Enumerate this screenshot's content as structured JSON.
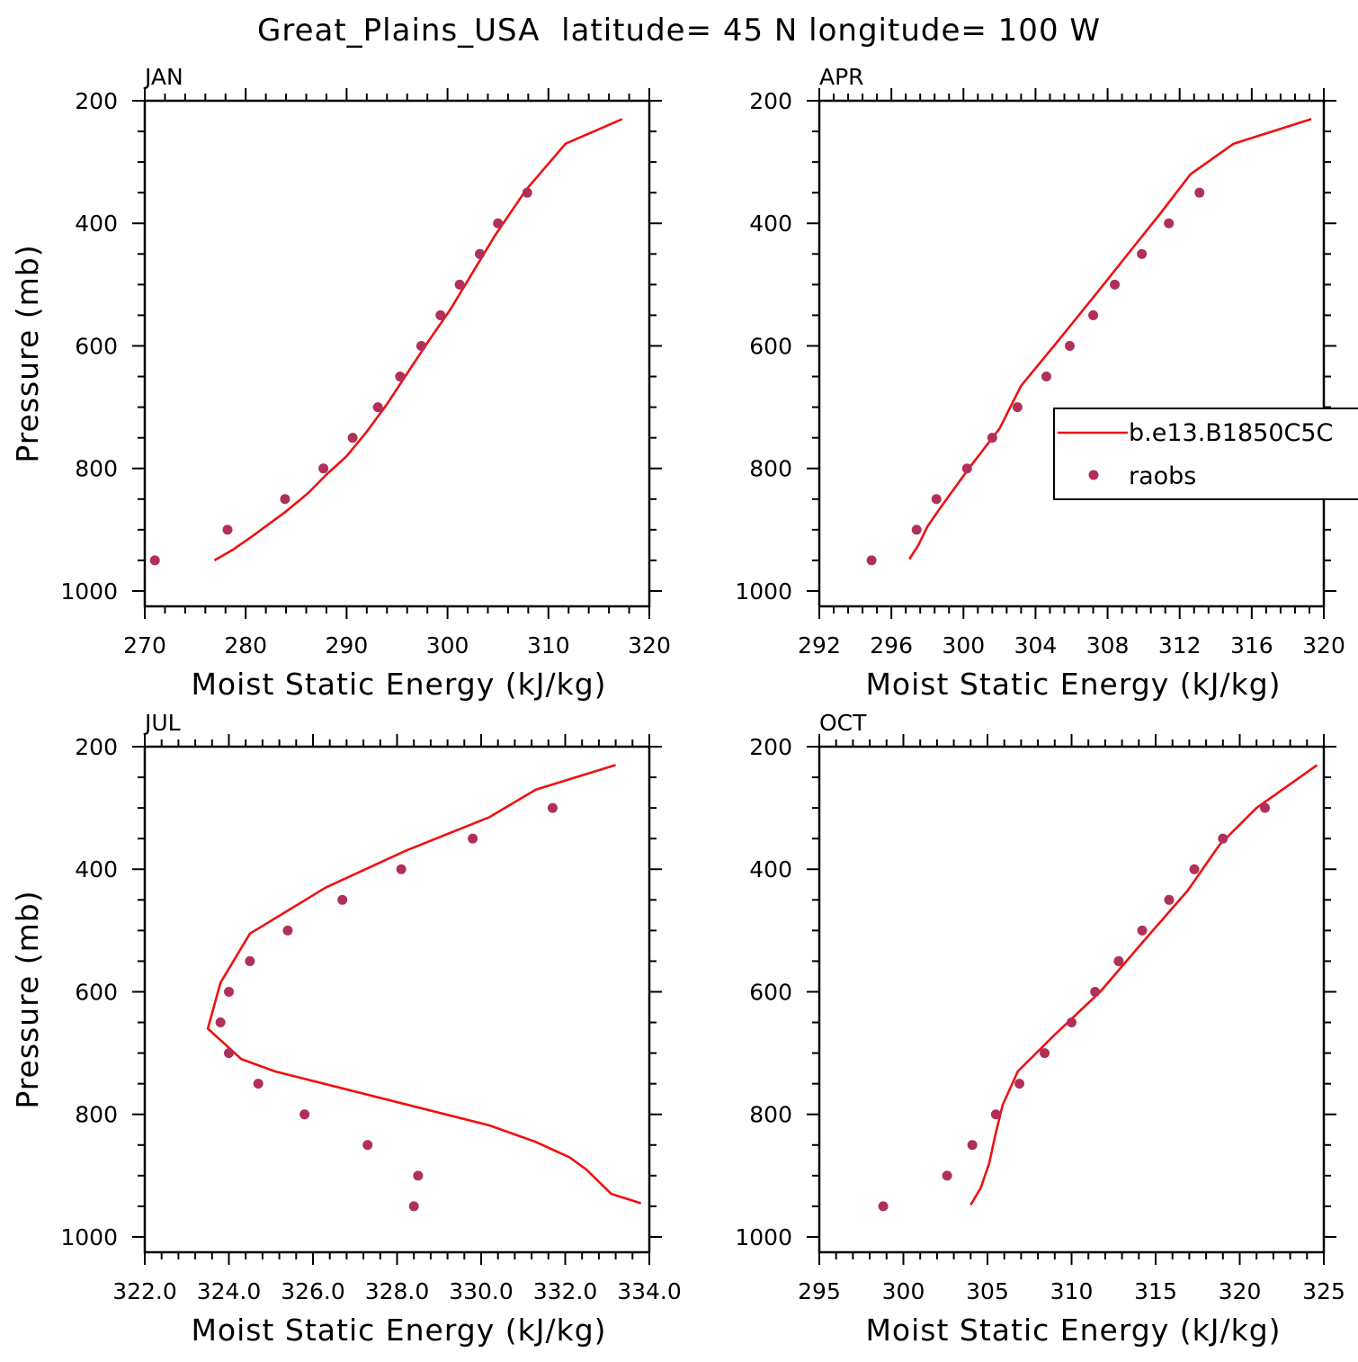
{
  "title": "Great_Plains_USA  latitude= 45 N longitude= 100 W",
  "colors": {
    "model": "#ee1111",
    "raobs": "#b0305a",
    "axis": "#000000"
  },
  "legend": {
    "model_label": "b.e13.B1850C5C",
    "obs_label": "raobs"
  },
  "chart_data": [
    {
      "type": "line+scatter",
      "panel": "JAN",
      "xlabel": "Moist Static Energy (kJ/kg)",
      "ylabel": "Pressure (mb)",
      "xlim": [
        270,
        320
      ],
      "ylim": [
        1025,
        200
      ],
      "xticks": [
        270,
        280,
        290,
        300,
        310,
        320
      ],
      "xtick_labels": [
        "270",
        "280",
        "290",
        "300",
        "310",
        "320"
      ],
      "yticks": [
        200,
        400,
        600,
        800,
        1000
      ],
      "ytick_labels": [
        "200",
        "400",
        "600",
        "800",
        "1000"
      ],
      "model": {
        "name": "b.e13.B1850C5C",
        "x": [
          276.9,
          278.8,
          280.7,
          284.0,
          286.2,
          288.0,
          290.0,
          292.0,
          294.0,
          296.0,
          298.0,
          300.3,
          302.5,
          304.7,
          307.8,
          311.7,
          317.3
        ],
        "p": [
          950,
          932,
          910,
          870,
          840,
          810,
          780,
          740,
          695,
          645,
          595,
          540,
          480,
          420,
          345,
          270,
          230
        ]
      },
      "raobs": {
        "name": "raobs",
        "x": [
          271.0,
          278.2,
          283.9,
          287.7,
          290.6,
          293.1,
          295.3,
          297.4,
          299.3,
          301.2,
          303.2,
          305.0,
          307.9
        ],
        "p": [
          950,
          900,
          850,
          800,
          750,
          700,
          650,
          600,
          550,
          500,
          450,
          400,
          350
        ]
      }
    },
    {
      "type": "line+scatter",
      "panel": "APR",
      "xlabel": "Moist Static Energy (kJ/kg)",
      "ylabel": "Pressure (mb)",
      "xlim": [
        292,
        320
      ],
      "ylim": [
        1025,
        200
      ],
      "xticks": [
        292,
        296,
        300,
        304,
        308,
        312,
        316,
        320
      ],
      "xtick_labels": [
        "292",
        "296",
        "300",
        "304",
        "308",
        "312",
        "316",
        "320"
      ],
      "yticks": [
        200,
        400,
        600,
        800,
        1000
      ],
      "ytick_labels": [
        "200",
        "400",
        "600",
        "800",
        "1000"
      ],
      "model": {
        "name": "b.e13.B1850C5C",
        "x": [
          297.0,
          297.5,
          298.0,
          298.7,
          300.3,
          302.0,
          303.2,
          305.3,
          307.5,
          309.4,
          310.9,
          312.6,
          315.0,
          319.3
        ],
        "p": [
          948,
          925,
          895,
          865,
          800,
          735,
          665,
          590,
          510,
          440,
          385,
          320,
          270,
          230
        ]
      },
      "raobs": {
        "name": "raobs",
        "x": [
          294.9,
          297.4,
          298.5,
          300.2,
          301.6,
          303.0,
          304.6,
          305.9,
          307.2,
          308.4,
          309.9,
          311.4,
          313.1
        ],
        "p": [
          950,
          900,
          850,
          800,
          750,
          700,
          650,
          600,
          550,
          500,
          450,
          400,
          350
        ]
      }
    },
    {
      "type": "line+scatter",
      "panel": "JUL",
      "xlabel": "Moist Static Energy (kJ/kg)",
      "ylabel": "Pressure (mb)",
      "xlim": [
        322.0,
        334.0
      ],
      "ylim": [
        1025,
        200
      ],
      "xticks": [
        322,
        324,
        326,
        328,
        330,
        332,
        334
      ],
      "xtick_labels": [
        "322.0",
        "324.0",
        "326.0",
        "328.0",
        "330.0",
        "332.0",
        "334.0"
      ],
      "yticks": [
        200,
        400,
        600,
        800,
        1000
      ],
      "ytick_labels": [
        "200",
        "400",
        "600",
        "800",
        "1000"
      ],
      "model": {
        "name": "b.e13.B1850C5C",
        "x": [
          333.8,
          333.1,
          332.8,
          332.5,
          332.1,
          331.3,
          330.2,
          325.1,
          324.3,
          323.5,
          323.8,
          324.5,
          326.3,
          328.2,
          330.2,
          331.3,
          333.2
        ],
        "p": [
          945,
          930,
          910,
          890,
          870,
          845,
          818,
          730,
          710,
          660,
          585,
          505,
          430,
          370,
          315,
          270,
          230
        ]
      },
      "raobs": {
        "name": "raobs",
        "x": [
          328.4,
          328.5,
          327.3,
          325.8,
          324.7,
          324.0,
          323.8,
          324.0,
          324.5,
          325.4,
          326.7,
          328.1,
          329.8,
          331.7
        ],
        "p": [
          950,
          900,
          850,
          800,
          750,
          700,
          650,
          600,
          550,
          500,
          450,
          400,
          350,
          300
        ]
      }
    },
    {
      "type": "line+scatter",
      "panel": "OCT",
      "xlabel": "Moist Static Energy (kJ/kg)",
      "ylabel": "Pressure (mb)",
      "xlim": [
        295,
        325
      ],
      "ylim": [
        1025,
        200
      ],
      "xticks": [
        295,
        300,
        305,
        310,
        315,
        320,
        325
      ],
      "xtick_labels": [
        "295",
        "300",
        "305",
        "310",
        "315",
        "320",
        "325"
      ],
      "yticks": [
        200,
        400,
        600,
        800,
        1000
      ],
      "ytick_labels": [
        "200",
        "400",
        "600",
        "800",
        "1000"
      ],
      "model": {
        "name": "b.e13.B1850C5C",
        "x": [
          304.0,
          304.6,
          305.1,
          305.5,
          305.9,
          306.8,
          309.0,
          311.7,
          314.2,
          316.9,
          318.8,
          321.0,
          324.6
        ],
        "p": [
          948,
          920,
          880,
          830,
          785,
          730,
          670,
          600,
          520,
          435,
          360,
          300,
          230
        ]
      },
      "raobs": {
        "name": "raobs",
        "x": [
          298.8,
          302.6,
          304.1,
          305.5,
          306.9,
          308.4,
          310.0,
          311.4,
          312.8,
          314.2,
          315.8,
          317.3,
          319.0,
          321.5
        ],
        "p": [
          950,
          900,
          850,
          800,
          750,
          700,
          650,
          600,
          550,
          500,
          450,
          400,
          350,
          300
        ]
      }
    }
  ]
}
